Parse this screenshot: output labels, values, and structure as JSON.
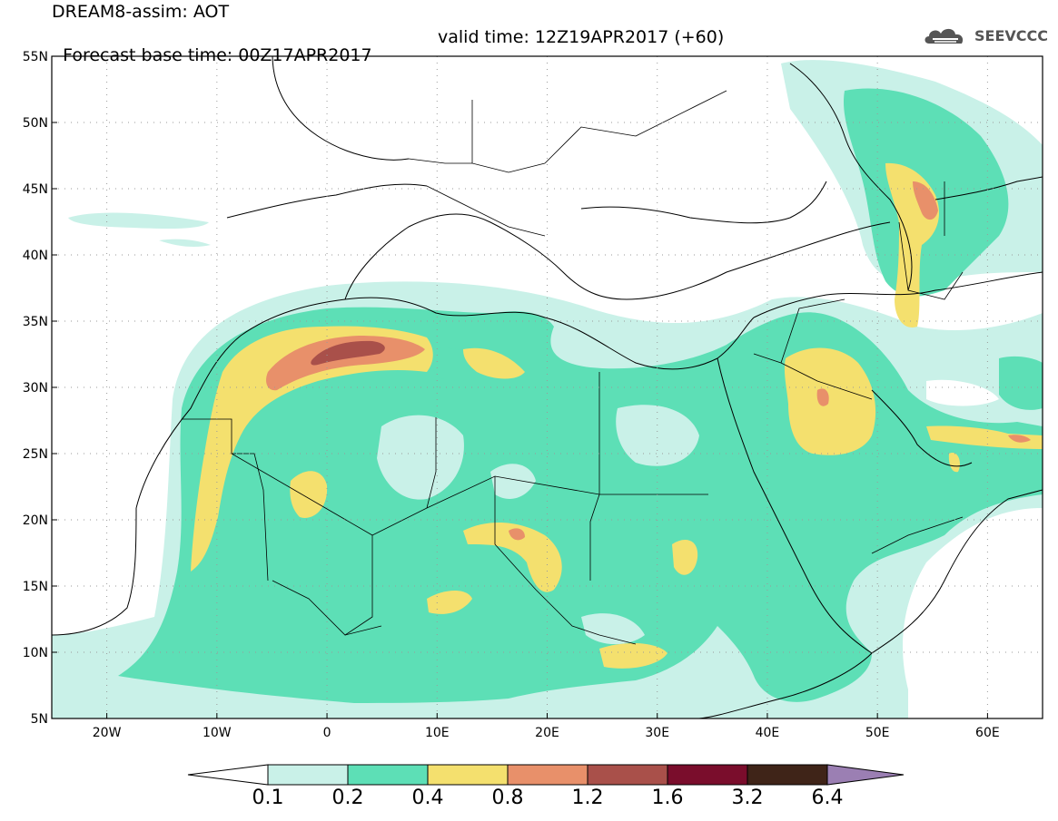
{
  "header": {
    "title_line1": "DREAM8-assim: AOT",
    "title_line2": "Forecast base time: 00Z17APR2017",
    "valid_time": "valid time: 12Z19APR2017 (+60)"
  },
  "logo": {
    "text": "SEEVCCC",
    "icon": "cloud-icon"
  },
  "map": {
    "lon_range": [
      -25,
      65
    ],
    "lat_range": [
      5,
      55
    ],
    "lat_ticks": [
      "55N",
      "50N",
      "45N",
      "40N",
      "35N",
      "30N",
      "25N",
      "20N",
      "15N",
      "10N",
      "5N"
    ],
    "lon_ticks": [
      "20W",
      "10W",
      "0",
      "10E",
      "20E",
      "30E",
      "40E",
      "50E",
      "60E"
    ],
    "grid": "dotted"
  },
  "colorbar": {
    "levels": [
      "0.1",
      "0.2",
      "0.4",
      "0.8",
      "1.2",
      "1.6",
      "3.2",
      "6.4"
    ],
    "colors": {
      "c1": "#c9f1e8",
      "c2": "#5ddfb6",
      "c3": "#f4e06e",
      "c4": "#e8906a",
      "c5": "#a9504a",
      "c6": "#7a0d2c",
      "c7": "#3f2418",
      "c8": "#9b7fb3",
      "under": "#ffffff"
    }
  }
}
